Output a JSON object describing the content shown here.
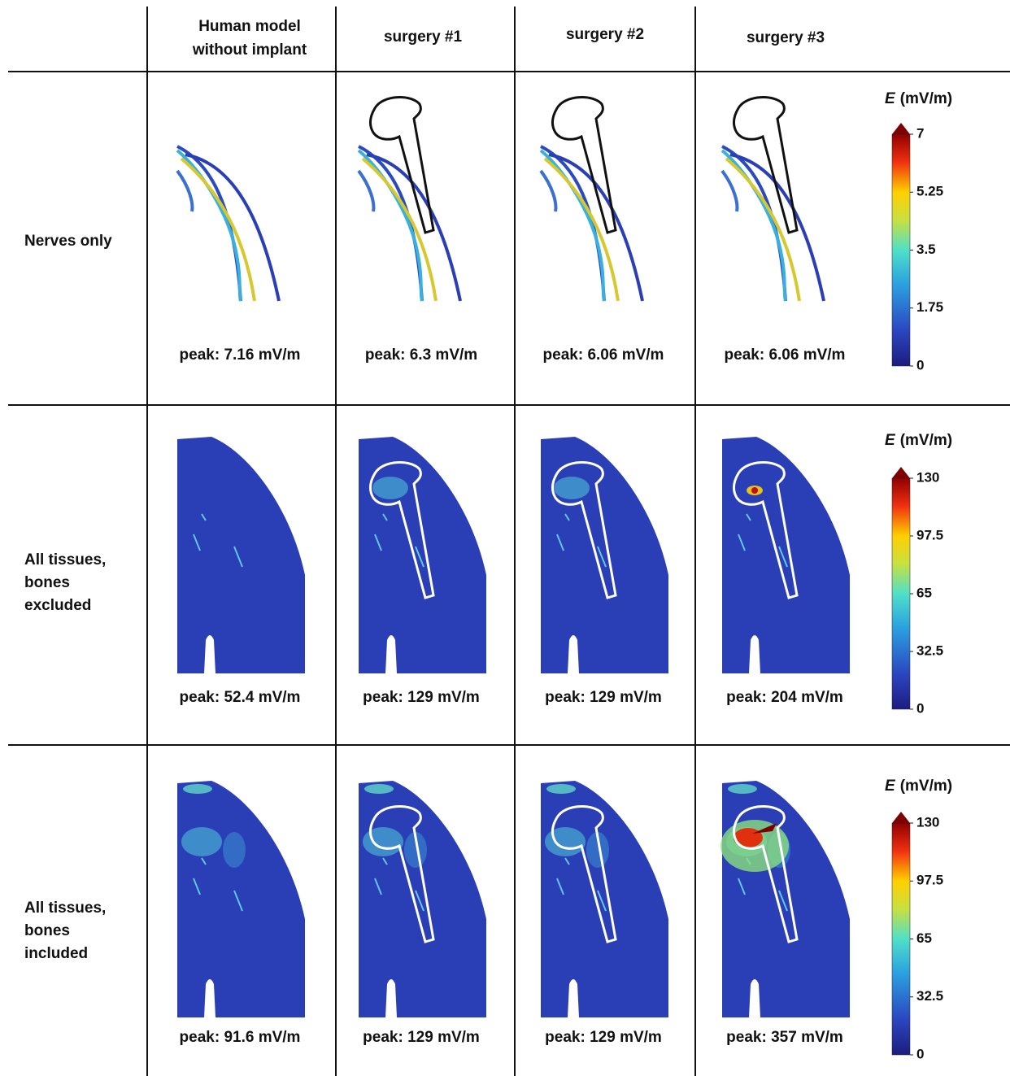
{
  "header": {
    "columns": [
      [
        "Human model",
        "without implant"
      ],
      [
        "surgery #1"
      ],
      [
        "surgery #2"
      ],
      [
        "surgery #3"
      ]
    ]
  },
  "rows": [
    {
      "label": [
        "Nerves only"
      ],
      "peaks": [
        "peak: 7.16 mV/m",
        "peak: 6.3 mV/m",
        "peak: 6.06 mV/m",
        "peak: 6.06 mV/m"
      ],
      "colorbar": {
        "symbol": "E",
        "unit": "(mV/m)",
        "range": [
          0,
          7
        ],
        "ticks": [
          0,
          1.75,
          3.5,
          5.25,
          7
        ]
      }
    },
    {
      "label": [
        "All tissues,",
        "bones",
        "excluded"
      ],
      "peaks": [
        "peak: 52.4 mV/m",
        "peak: 129 mV/m",
        "peak: 129 mV/m",
        "peak: 204 mV/m"
      ],
      "colorbar": {
        "symbol": "E",
        "unit": "(mV/m)",
        "range": [
          0,
          130
        ],
        "ticks": [
          0,
          32.5,
          65,
          97.5,
          130
        ]
      }
    },
    {
      "label": [
        "All tissues,",
        "bones",
        "included"
      ],
      "peaks": [
        "peak: 91.6 mV/m",
        "peak: 129 mV/m",
        "peak: 129 mV/m",
        "peak: 357 mV/m"
      ],
      "colorbar": {
        "symbol": "E",
        "unit": "(mV/m)",
        "range": [
          0,
          130
        ],
        "ticks": [
          0,
          32.5,
          65,
          97.5,
          130
        ]
      }
    }
  ]
}
